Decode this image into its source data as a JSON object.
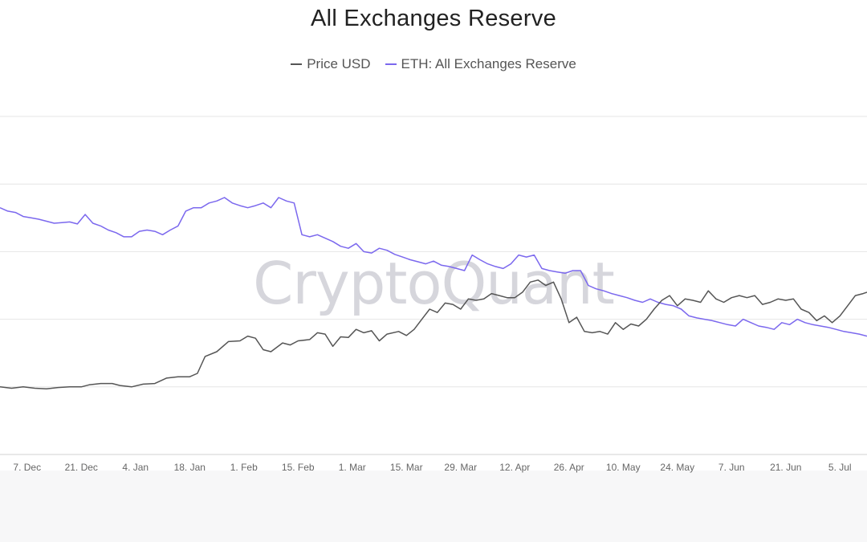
{
  "chart_data": {
    "type": "line",
    "title": "All Exchanges Reserve",
    "watermark": "CryptoQuant",
    "grid": true,
    "legend_position": "top-center",
    "x_ticks": [
      "7. Dec",
      "21. Dec",
      "4. Jan",
      "18. Jan",
      "1. Feb",
      "15. Feb",
      "1. Mar",
      "15. Mar",
      "29. Mar",
      "12. Apr",
      "26. Apr",
      "10. May",
      "24. May",
      "7. Jun",
      "21. Jun",
      "5. Jul"
    ],
    "x_range_days": [
      -7,
      217
    ],
    "y_range_relative": [
      0,
      5
    ],
    "series": [
      {
        "name": "Price USD",
        "color": "#555555",
        "points": [
          [
            -7,
            1.0
          ],
          [
            -4,
            0.98
          ],
          [
            -1,
            1.0
          ],
          [
            2,
            0.98
          ],
          [
            5,
            0.97
          ],
          [
            8,
            0.99
          ],
          [
            11,
            1.0
          ],
          [
            14,
            1.0
          ],
          [
            16,
            1.03
          ],
          [
            19,
            1.05
          ],
          [
            22,
            1.05
          ],
          [
            24,
            1.02
          ],
          [
            27,
            1.0
          ],
          [
            30,
            1.04
          ],
          [
            33,
            1.05
          ],
          [
            36,
            1.13
          ],
          [
            39,
            1.15
          ],
          [
            42,
            1.15
          ],
          [
            44,
            1.2
          ],
          [
            46,
            1.45
          ],
          [
            49,
            1.52
          ],
          [
            52,
            1.67
          ],
          [
            55,
            1.68
          ],
          [
            57,
            1.75
          ],
          [
            59,
            1.72
          ],
          [
            61,
            1.55
          ],
          [
            63,
            1.52
          ],
          [
            66,
            1.65
          ],
          [
            68,
            1.62
          ],
          [
            70,
            1.68
          ],
          [
            73,
            1.7
          ],
          [
            75,
            1.8
          ],
          [
            77,
            1.78
          ],
          [
            79,
            1.6
          ],
          [
            81,
            1.74
          ],
          [
            83,
            1.73
          ],
          [
            85,
            1.85
          ],
          [
            87,
            1.8
          ],
          [
            89,
            1.83
          ],
          [
            91,
            1.68
          ],
          [
            93,
            1.78
          ],
          [
            96,
            1.82
          ],
          [
            98,
            1.76
          ],
          [
            100,
            1.85
          ],
          [
            102,
            2.0
          ],
          [
            104,
            2.15
          ],
          [
            106,
            2.1
          ],
          [
            108,
            2.24
          ],
          [
            110,
            2.22
          ],
          [
            112,
            2.15
          ],
          [
            114,
            2.3
          ],
          [
            116,
            2.28
          ],
          [
            118,
            2.3
          ],
          [
            120,
            2.38
          ],
          [
            122,
            2.35
          ],
          [
            124,
            2.32
          ],
          [
            126,
            2.32
          ],
          [
            128,
            2.4
          ],
          [
            130,
            2.55
          ],
          [
            132,
            2.58
          ],
          [
            134,
            2.5
          ],
          [
            136,
            2.55
          ],
          [
            138,
            2.3
          ],
          [
            140,
            1.95
          ],
          [
            142,
            2.03
          ],
          [
            144,
            1.82
          ],
          [
            146,
            1.8
          ],
          [
            148,
            1.82
          ],
          [
            150,
            1.78
          ],
          [
            152,
            1.95
          ],
          [
            154,
            1.85
          ],
          [
            156,
            1.93
          ],
          [
            158,
            1.9
          ],
          [
            160,
            2.0
          ],
          [
            162,
            2.15
          ],
          [
            164,
            2.28
          ],
          [
            166,
            2.35
          ],
          [
            168,
            2.2
          ],
          [
            170,
            2.3
          ],
          [
            172,
            2.28
          ],
          [
            174,
            2.25
          ],
          [
            176,
            2.42
          ],
          [
            178,
            2.3
          ],
          [
            180,
            2.25
          ],
          [
            182,
            2.32
          ],
          [
            184,
            2.35
          ],
          [
            186,
            2.32
          ],
          [
            188,
            2.35
          ],
          [
            190,
            2.22
          ],
          [
            192,
            2.25
          ],
          [
            194,
            2.3
          ],
          [
            196,
            2.28
          ],
          [
            198,
            2.3
          ],
          [
            200,
            2.15
          ],
          [
            202,
            2.1
          ],
          [
            204,
            1.98
          ],
          [
            206,
            2.05
          ],
          [
            208,
            1.95
          ],
          [
            210,
            2.05
          ],
          [
            212,
            2.2
          ],
          [
            214,
            2.35
          ],
          [
            216,
            2.38
          ],
          [
            217,
            2.4
          ]
        ]
      },
      {
        "name": "ETH: All Exchanges Reserve",
        "color": "#7b68ee",
        "points": [
          [
            -7,
            3.65
          ],
          [
            -5,
            3.6
          ],
          [
            -3,
            3.58
          ],
          [
            -1,
            3.52
          ],
          [
            1,
            3.5
          ],
          [
            3,
            3.48
          ],
          [
            5,
            3.45
          ],
          [
            7,
            3.42
          ],
          [
            9,
            3.43
          ],
          [
            11,
            3.44
          ],
          [
            13,
            3.41
          ],
          [
            15,
            3.55
          ],
          [
            17,
            3.42
          ],
          [
            19,
            3.38
          ],
          [
            21,
            3.32
          ],
          [
            23,
            3.28
          ],
          [
            25,
            3.22
          ],
          [
            27,
            3.22
          ],
          [
            29,
            3.3
          ],
          [
            31,
            3.32
          ],
          [
            33,
            3.3
          ],
          [
            35,
            3.25
          ],
          [
            37,
            3.32
          ],
          [
            39,
            3.38
          ],
          [
            41,
            3.6
          ],
          [
            43,
            3.65
          ],
          [
            45,
            3.65
          ],
          [
            47,
            3.72
          ],
          [
            49,
            3.75
          ],
          [
            51,
            3.8
          ],
          [
            53,
            3.72
          ],
          [
            55,
            3.68
          ],
          [
            57,
            3.65
          ],
          [
            59,
            3.68
          ],
          [
            61,
            3.72
          ],
          [
            63,
            3.65
          ],
          [
            65,
            3.8
          ],
          [
            67,
            3.75
          ],
          [
            69,
            3.72
          ],
          [
            71,
            3.25
          ],
          [
            73,
            3.22
          ],
          [
            75,
            3.25
          ],
          [
            77,
            3.2
          ],
          [
            79,
            3.15
          ],
          [
            81,
            3.08
          ],
          [
            83,
            3.05
          ],
          [
            85,
            3.12
          ],
          [
            87,
            3.0
          ],
          [
            89,
            2.98
          ],
          [
            91,
            3.05
          ],
          [
            93,
            3.02
          ],
          [
            95,
            2.96
          ],
          [
            97,
            2.92
          ],
          [
            99,
            2.88
          ],
          [
            101,
            2.85
          ],
          [
            103,
            2.82
          ],
          [
            105,
            2.86
          ],
          [
            107,
            2.8
          ],
          [
            109,
            2.78
          ],
          [
            111,
            2.75
          ],
          [
            113,
            2.72
          ],
          [
            115,
            2.95
          ],
          [
            117,
            2.88
          ],
          [
            119,
            2.82
          ],
          [
            121,
            2.78
          ],
          [
            123,
            2.75
          ],
          [
            125,
            2.82
          ],
          [
            127,
            2.95
          ],
          [
            129,
            2.92
          ],
          [
            131,
            2.95
          ],
          [
            133,
            2.75
          ],
          [
            135,
            2.72
          ],
          [
            137,
            2.7
          ],
          [
            139,
            2.68
          ],
          [
            141,
            2.72
          ],
          [
            143,
            2.72
          ],
          [
            145,
            2.5
          ],
          [
            147,
            2.45
          ],
          [
            149,
            2.42
          ],
          [
            151,
            2.38
          ],
          [
            153,
            2.35
          ],
          [
            155,
            2.32
          ],
          [
            157,
            2.28
          ],
          [
            159,
            2.25
          ],
          [
            161,
            2.3
          ],
          [
            163,
            2.25
          ],
          [
            165,
            2.22
          ],
          [
            167,
            2.2
          ],
          [
            169,
            2.15
          ],
          [
            171,
            2.05
          ],
          [
            173,
            2.02
          ],
          [
            175,
            2.0
          ],
          [
            177,
            1.98
          ],
          [
            179,
            1.95
          ],
          [
            181,
            1.92
          ],
          [
            183,
            1.9
          ],
          [
            185,
            2.0
          ],
          [
            187,
            1.95
          ],
          [
            189,
            1.9
          ],
          [
            191,
            1.88
          ],
          [
            193,
            1.85
          ],
          [
            195,
            1.95
          ],
          [
            197,
            1.92
          ],
          [
            199,
            2.0
          ],
          [
            201,
            1.95
          ],
          [
            203,
            1.92
          ],
          [
            205,
            1.9
          ],
          [
            207,
            1.88
          ],
          [
            209,
            1.85
          ],
          [
            211,
            1.82
          ],
          [
            213,
            1.8
          ],
          [
            215,
            1.78
          ],
          [
            217,
            1.75
          ]
        ]
      }
    ]
  }
}
